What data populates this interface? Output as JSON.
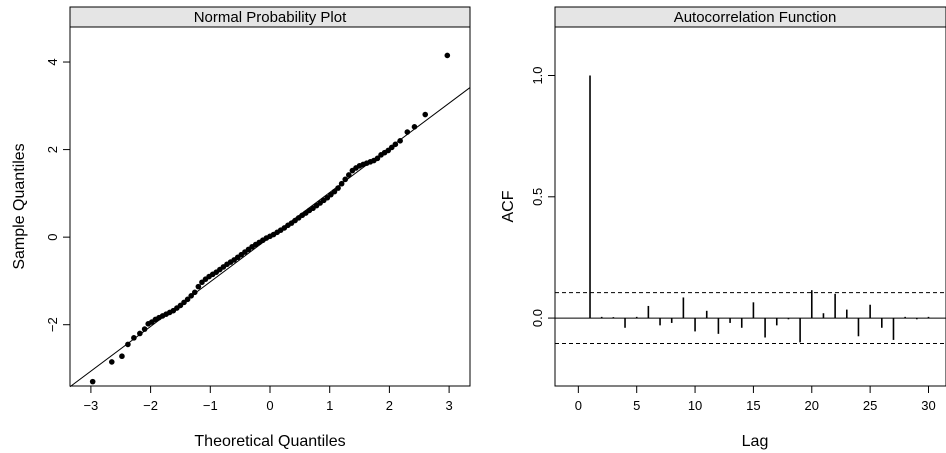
{
  "chart_data": [
    {
      "type": "scatter",
      "title": "Normal Probability Plot",
      "xlabel": "Theoretical Quantiles",
      "ylabel": "Sample Quantiles",
      "xlim": [
        -3.35,
        3.35
      ],
      "ylim": [
        -3.4,
        4.8
      ],
      "xticks": [
        -3,
        -2,
        -1,
        0,
        1,
        2,
        3
      ],
      "xtick_labels": [
        "−3",
        "−2",
        "−1",
        "0",
        "1",
        "2",
        "3"
      ],
      "yticks": [
        -2,
        0,
        2,
        4
      ],
      "ytick_labels": [
        "−2",
        "0",
        "2",
        "4"
      ],
      "reference_line": {
        "intercept": 0.0,
        "slope": 1.02
      },
      "points": {
        "x": [
          -2.97,
          -2.65,
          -2.48,
          -2.38,
          -2.28,
          -2.18,
          -2.1,
          -2.04,
          -1.98,
          -1.92,
          -1.86,
          -1.8,
          -1.74,
          -1.68,
          -1.62,
          -1.56,
          -1.5,
          -1.44,
          -1.38,
          -1.32,
          -1.26,
          -1.2,
          -1.14,
          -1.08,
          -1.02,
          -0.96,
          -0.9,
          -0.84,
          -0.78,
          -0.72,
          -0.66,
          -0.6,
          -0.54,
          -0.48,
          -0.42,
          -0.36,
          -0.3,
          -0.24,
          -0.18,
          -0.12,
          -0.06,
          0.0,
          0.06,
          0.12,
          0.18,
          0.24,
          0.3,
          0.36,
          0.42,
          0.48,
          0.54,
          0.6,
          0.66,
          0.72,
          0.78,
          0.84,
          0.9,
          0.96,
          1.02,
          1.08,
          1.14,
          1.2,
          1.26,
          1.32,
          1.38,
          1.44,
          1.5,
          1.56,
          1.62,
          1.68,
          1.74,
          1.8,
          1.86,
          1.92,
          1.98,
          2.04,
          2.1,
          2.18,
          2.3,
          2.42,
          2.6,
          2.97
        ],
        "y": [
          -3.3,
          -2.85,
          -2.72,
          -2.45,
          -2.3,
          -2.2,
          -2.1,
          -1.98,
          -1.94,
          -1.88,
          -1.84,
          -1.8,
          -1.76,
          -1.72,
          -1.68,
          -1.62,
          -1.56,
          -1.49,
          -1.42,
          -1.34,
          -1.26,
          -1.13,
          -1.03,
          -0.96,
          -0.9,
          -0.85,
          -0.8,
          -0.74,
          -0.68,
          -0.62,
          -0.57,
          -0.52,
          -0.46,
          -0.4,
          -0.34,
          -0.28,
          -0.22,
          -0.17,
          -0.12,
          -0.07,
          -0.02,
          0.02,
          0.06,
          0.11,
          0.16,
          0.21,
          0.27,
          0.32,
          0.38,
          0.44,
          0.5,
          0.55,
          0.61,
          0.66,
          0.72,
          0.78,
          0.84,
          0.9,
          0.97,
          1.04,
          1.12,
          1.22,
          1.32,
          1.42,
          1.52,
          1.58,
          1.63,
          1.66,
          1.69,
          1.72,
          1.75,
          1.8,
          1.88,
          1.93,
          1.98,
          2.05,
          2.12,
          2.2,
          2.4,
          2.52,
          2.8,
          4.15
        ]
      }
    },
    {
      "type": "bar",
      "title": "Autocorrelation Function",
      "xlabel": "Lag",
      "ylabel": "ACF",
      "xlim": [
        -2.0,
        31.5
      ],
      "ylim": [
        -0.28,
        1.2
      ],
      "xticks": [
        0,
        5,
        10,
        15,
        20,
        25,
        30
      ],
      "xtick_labels": [
        "0",
        "5",
        "10",
        "15",
        "20",
        "25",
        "30"
      ],
      "yticks": [
        0.0,
        0.5,
        1.0
      ],
      "ytick_labels": [
        "0.0",
        "0.5",
        "1.0"
      ],
      "confidence_bounds": [
        0.105,
        -0.105
      ],
      "lags": [
        1,
        2,
        3,
        4,
        5,
        6,
        7,
        8,
        9,
        10,
        11,
        12,
        13,
        14,
        15,
        16,
        17,
        18,
        19,
        20,
        21,
        22,
        23,
        24,
        25,
        26,
        27,
        28,
        29,
        30,
        31
      ],
      "values": [
        1.0,
        0.005,
        0.004,
        -0.04,
        0.005,
        0.05,
        -0.03,
        -0.02,
        0.085,
        -0.055,
        0.03,
        -0.065,
        -0.02,
        -0.04,
        0.065,
        -0.08,
        -0.03,
        -0.005,
        -0.1,
        0.115,
        0.02,
        0.1,
        0.035,
        -0.075,
        0.055,
        -0.04,
        -0.09,
        0.005,
        -0.005,
        0.005,
        0.0
      ]
    }
  ]
}
